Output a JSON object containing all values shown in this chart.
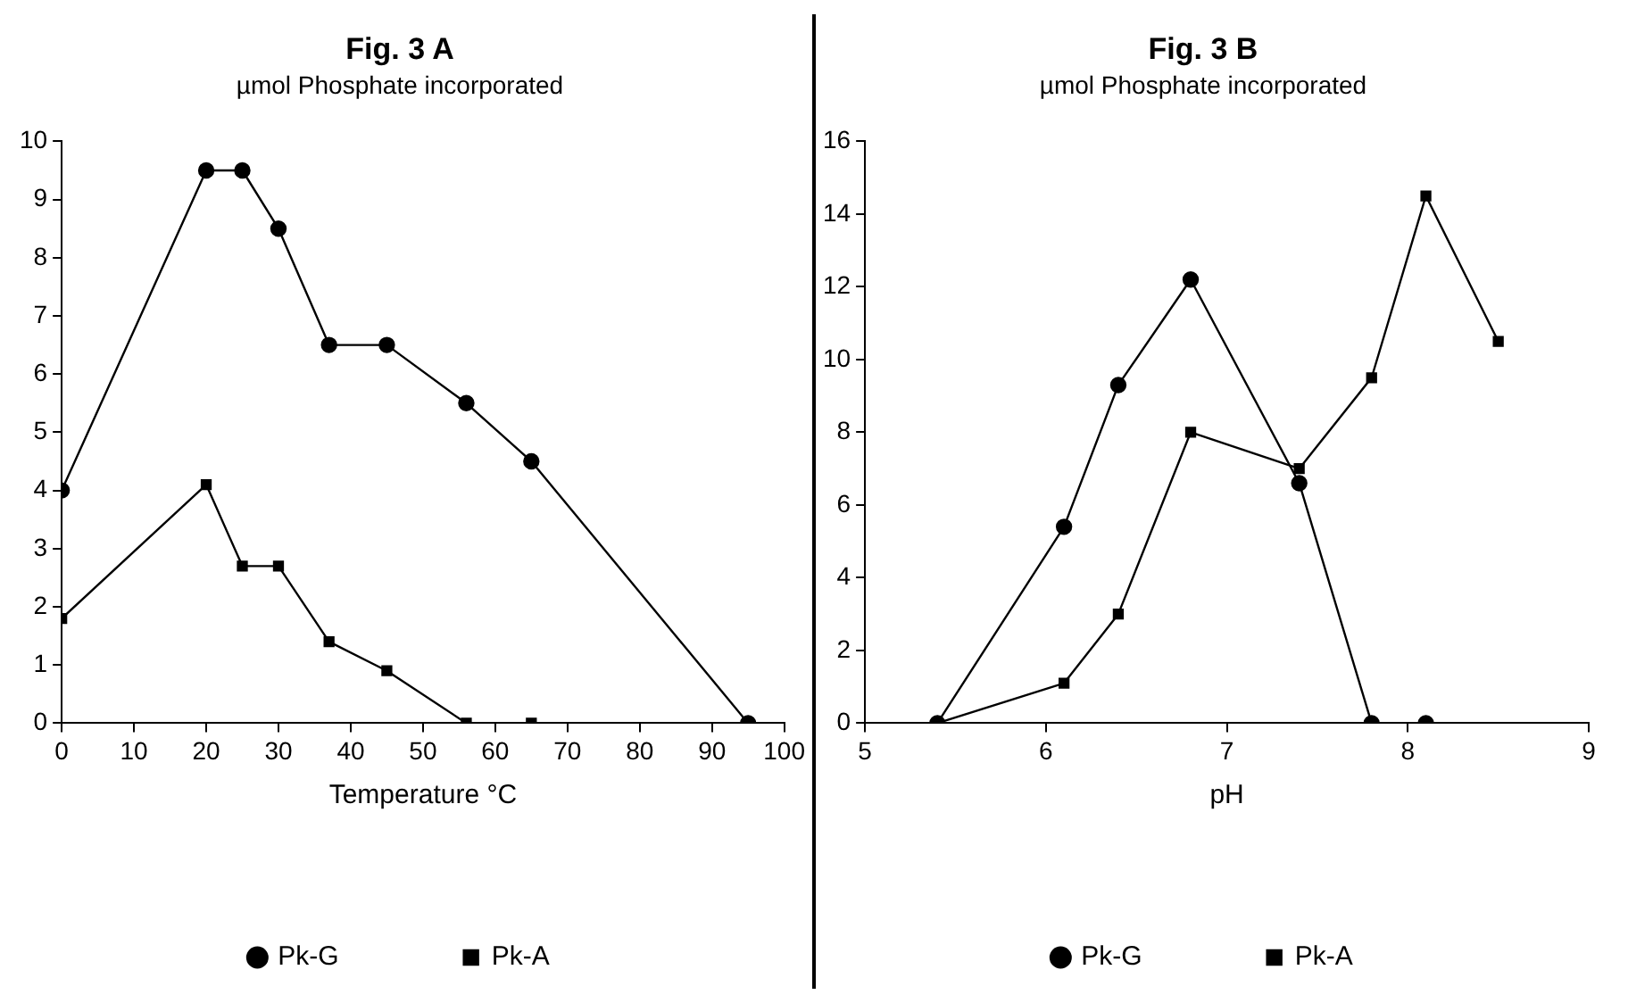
{
  "chart_data": [
    {
      "type": "line",
      "title": "Fig. 3 A",
      "subtitle": "µmol Phosphate incorporated",
      "xlabel": "Temperature °C",
      "xlim": [
        0,
        100
      ],
      "xticks": [
        0,
        10,
        20,
        30,
        40,
        50,
        60,
        70,
        80,
        90,
        100
      ],
      "ylim": [
        0,
        10
      ],
      "yticks": [
        0,
        1,
        2,
        3,
        4,
        5,
        6,
        7,
        8,
        9,
        10
      ],
      "legend": "bottom",
      "series": [
        {
          "name": "Pk-G",
          "color": "#000000",
          "marker": "circle",
          "x": [
            0,
            20,
            25,
            30,
            37,
            45,
            56,
            65,
            95
          ],
          "values": [
            4,
            9.5,
            9.5,
            8.5,
            6.5,
            6.5,
            5.5,
            4.5,
            0
          ]
        },
        {
          "name": "Pk-A",
          "color": "#000000",
          "marker": "square",
          "x": [
            0,
            20,
            25,
            30,
            37,
            45,
            56,
            65,
            95
          ],
          "values": [
            1.8,
            4.1,
            2.7,
            2.7,
            1.4,
            0.9,
            0,
            0,
            0
          ]
        }
      ]
    },
    {
      "type": "line",
      "title": "Fig. 3 B",
      "subtitle": "µmol Phosphate incorporated",
      "xlabel": "pH",
      "xlim": [
        5,
        9
      ],
      "xticks": [
        5,
        6,
        7,
        8,
        9
      ],
      "ylim": [
        0,
        16
      ],
      "yticks": [
        0,
        2,
        4,
        6,
        8,
        10,
        12,
        14,
        16
      ],
      "legend": "bottom",
      "series": [
        {
          "name": "Pk-G",
          "color": "#000000",
          "marker": "circle",
          "x": [
            5.4,
            6.1,
            6.4,
            6.8,
            7.4,
            7.8,
            8.1
          ],
          "values": [
            0,
            5.4,
            9.3,
            12.2,
            6.6,
            0,
            0
          ]
        },
        {
          "name": "Pk-A",
          "color": "#000000",
          "marker": "square",
          "x": [
            5.4,
            6.1,
            6.4,
            6.8,
            7.4,
            7.8,
            8.1,
            8.5
          ],
          "values": [
            0,
            1.1,
            3,
            8,
            7,
            9.5,
            14.5,
            10.5
          ]
        }
      ]
    }
  ]
}
